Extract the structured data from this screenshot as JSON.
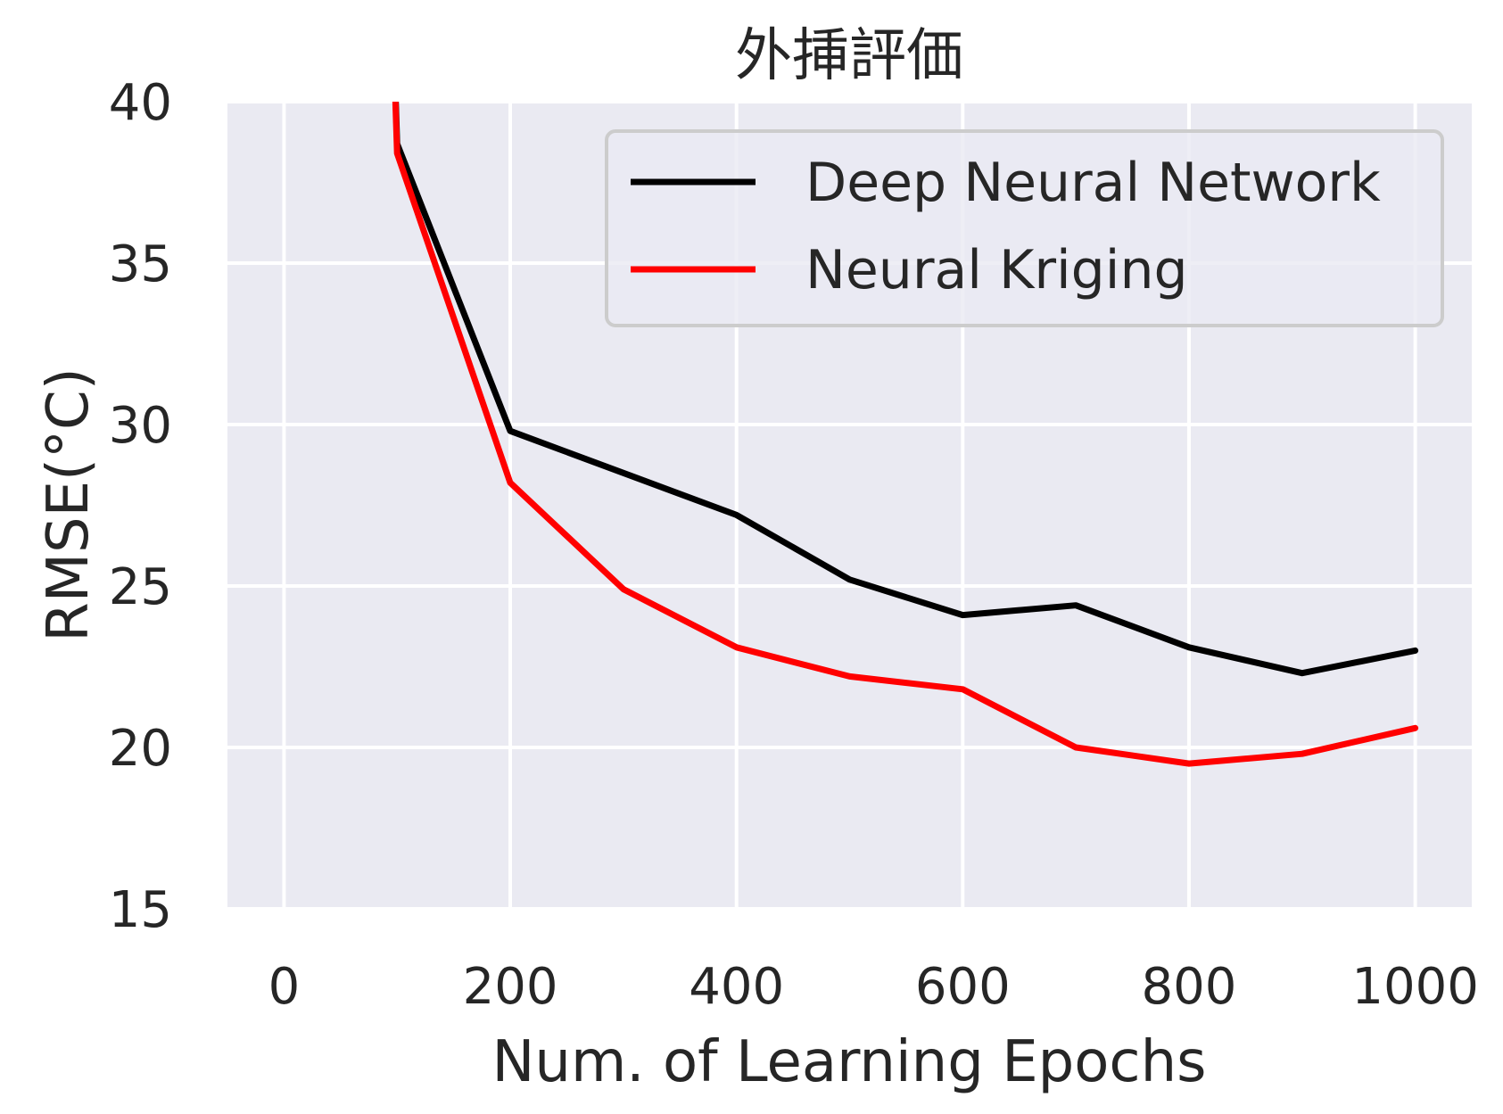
{
  "chart_data": {
    "type": "line",
    "title": "外挿評価",
    "xlabel": "Num. of Learning Epochs",
    "ylabel": "RMSE(°C)",
    "xlim": [
      -50,
      1050
    ],
    "ylim": [
      15,
      40
    ],
    "xticks": [
      0,
      200,
      400,
      600,
      800,
      1000
    ],
    "yticks": [
      15,
      20,
      25,
      30,
      35,
      40
    ],
    "xtick_labels": [
      "0",
      "200",
      "400",
      "600",
      "800",
      "1000"
    ],
    "ytick_labels": [
      "15",
      "20",
      "25",
      "30",
      "35",
      "40"
    ],
    "grid": true,
    "legend_position": "top-right",
    "background_color": "#eaeaf2",
    "grid_color": "#ffffff",
    "series": [
      {
        "name": "Deep Neural Network",
        "color": "#000000",
        "x": [
          80,
          100,
          200,
          300,
          400,
          500,
          600,
          700,
          800,
          900,
          1000
        ],
        "y": [
          60,
          38.7,
          29.8,
          28.5,
          27.2,
          25.2,
          24.1,
          24.4,
          23.1,
          22.3,
          23.0
        ]
      },
      {
        "name": "Neural Kriging",
        "color": "#ff0000",
        "x": [
          80,
          100,
          200,
          300,
          400,
          500,
          600,
          700,
          800,
          900,
          1000
        ],
        "y": [
          60,
          38.4,
          28.2,
          24.9,
          23.1,
          22.2,
          21.8,
          20.0,
          19.5,
          19.8,
          20.6
        ]
      }
    ]
  }
}
